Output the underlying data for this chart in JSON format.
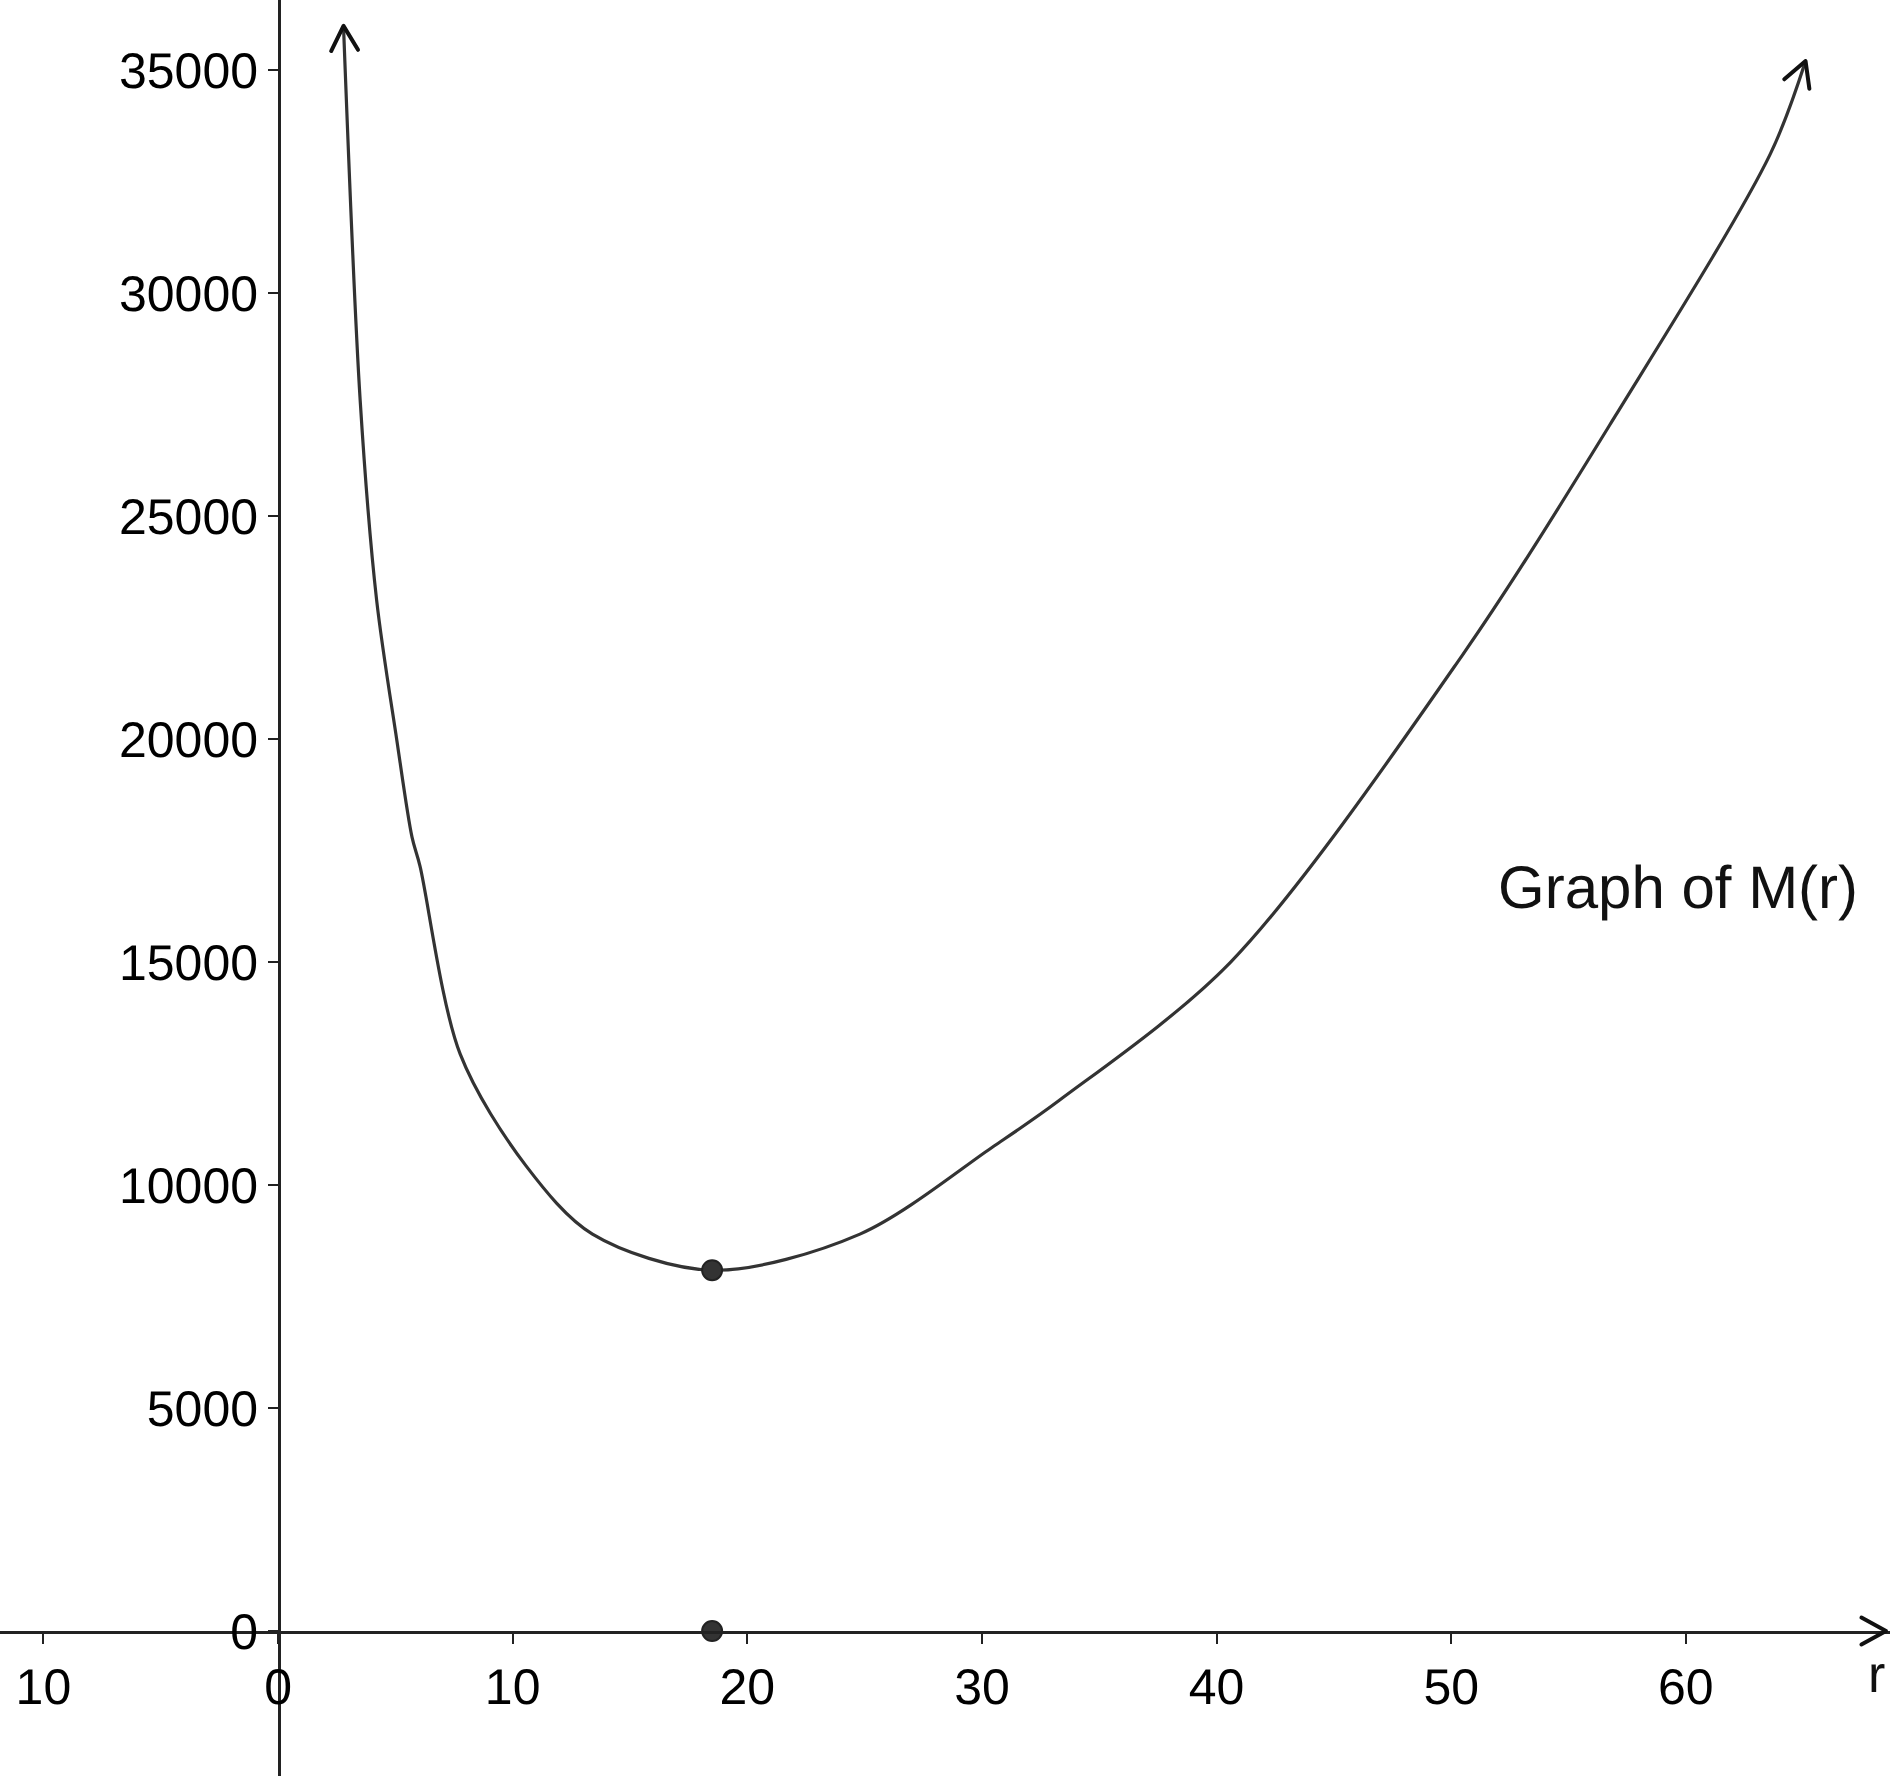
{
  "chart_data": {
    "type": "line",
    "xlabel": "r",
    "annotations": [
      "Graph of M(r)"
    ],
    "xlim": [
      -11.85,
      68.7
    ],
    "ylim": [
      -3250,
      36570
    ],
    "xticks": [
      {
        "value": -10,
        "label": "10"
      },
      0,
      10,
      20,
      30,
      40,
      50,
      60
    ],
    "yticks": [
      0,
      5000,
      10000,
      15000,
      20000,
      25000,
      30000,
      35000
    ],
    "series": [
      {
        "color": "#333333",
        "x": [
          2.79,
          3.5,
          4.2,
          5.06,
          5.71,
          6.05,
          7.76,
          10.57,
          13.4,
          18.5,
          24.8,
          30.5,
          33.3,
          40.6,
          50.5,
          57.0,
          63.6,
          65.1
        ],
        "values": [
          35990,
          27600,
          23120,
          19980,
          17800,
          17150,
          12940,
          10430,
          8900,
          8090,
          8900,
          10870,
          11900,
          15000,
          21900,
          27250,
          33120,
          35200
        ],
        "marker": "none"
      },
      {
        "type": "scatter",
        "color": "#333333",
        "x": [
          18.5,
          18.5
        ],
        "values": [
          8090,
          0
        ],
        "marker": "circle"
      }
    ]
  }
}
